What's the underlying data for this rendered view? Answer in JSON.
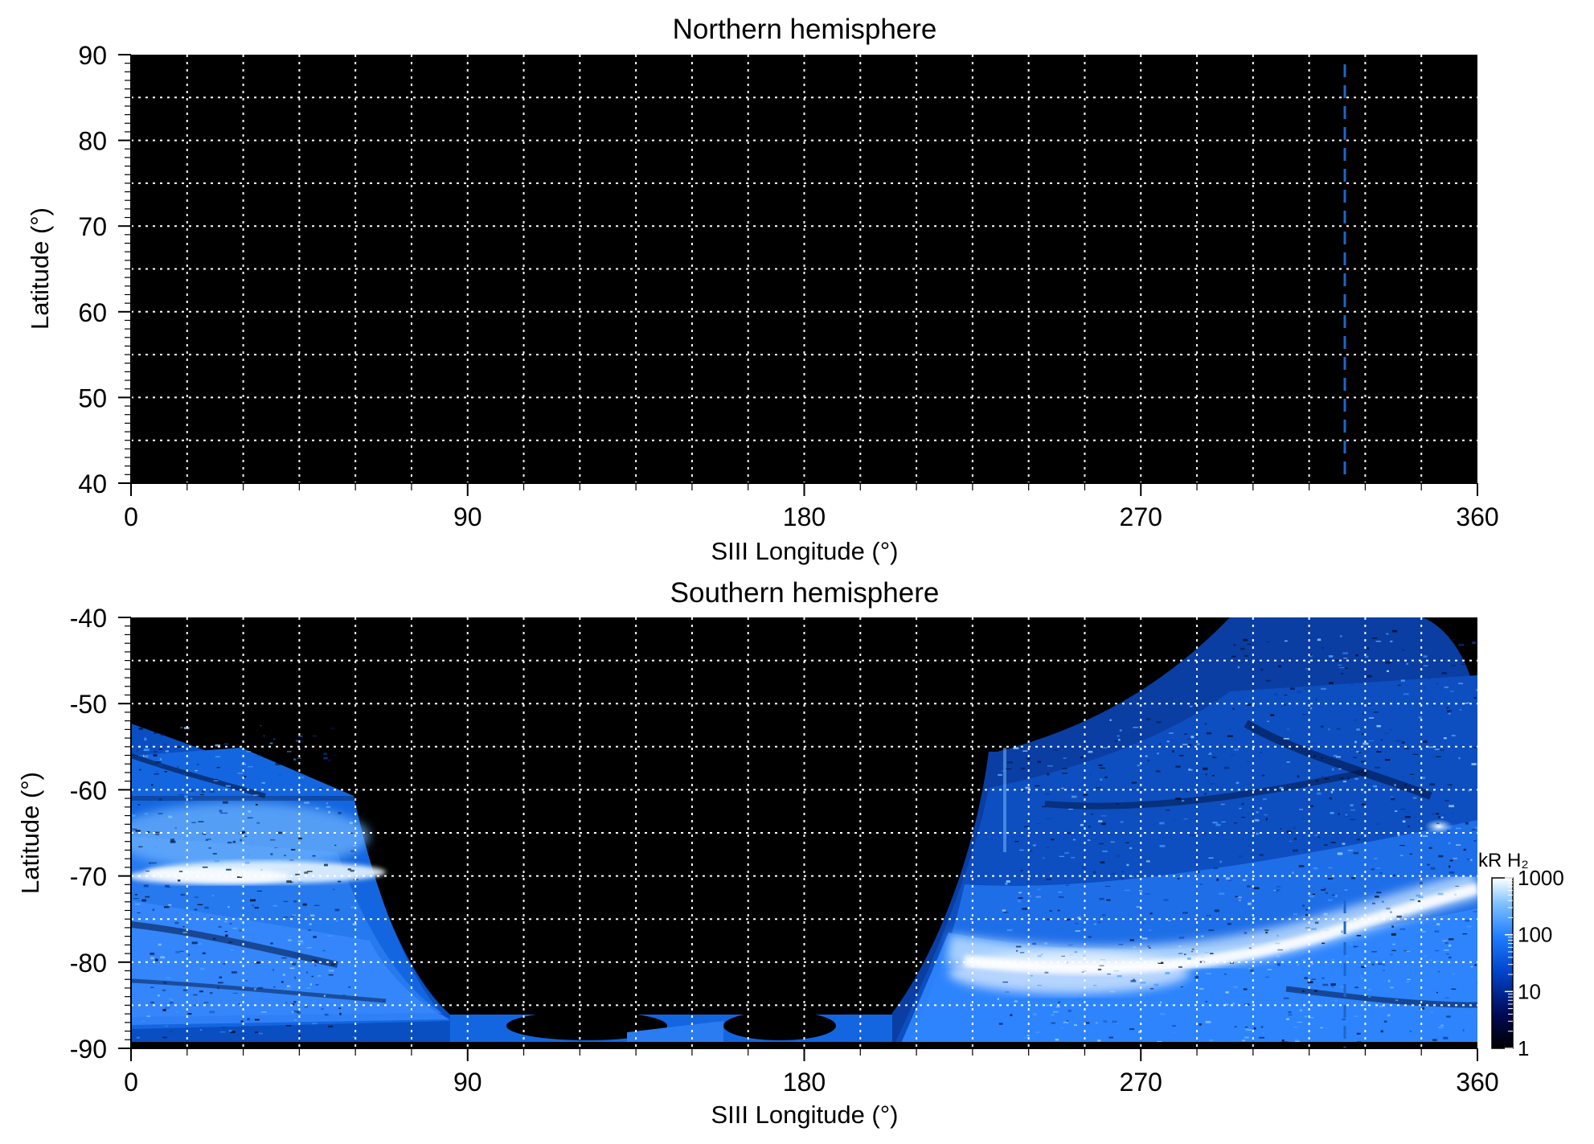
{
  "chart_data": [
    {
      "type": "heatmap",
      "title": "Northern hemisphere",
      "xlabel": "SIII Longitude (°)",
      "ylabel": "Latitude (°)",
      "xlim": [
        0,
        360
      ],
      "ylim": [
        40,
        90
      ],
      "xticks": [
        0,
        90,
        180,
        270,
        360
      ],
      "xtick_labels": [
        "0",
        "90",
        "180",
        "270",
        "360"
      ],
      "yticks": [
        40,
        50,
        60,
        70,
        80,
        90
      ],
      "ytick_labels": [
        "40",
        "50",
        "60",
        "70",
        "80",
        "90"
      ],
      "grid": true,
      "grid_x_step": 15,
      "grid_y_step": 5,
      "background": "#000000",
      "grid_color": "#ffffff",
      "emission": "none",
      "reference_line": {
        "longitude": 324,
        "color": "#1f66c9",
        "style": "dashed"
      }
    },
    {
      "type": "heatmap",
      "title": "Southern hemisphere",
      "xlabel": "SIII Longitude (°)",
      "ylabel": "Latitude (°)",
      "xlim": [
        0,
        360
      ],
      "ylim": [
        -90,
        -40
      ],
      "xticks": [
        0,
        90,
        180,
        270,
        360
      ],
      "xtick_labels": [
        "0",
        "90",
        "180",
        "270",
        "360"
      ],
      "yticks": [
        -40,
        -50,
        -60,
        -70,
        -80,
        -90
      ],
      "ytick_labels": [
        "-40",
        "-50",
        "-60",
        "-70",
        "-80",
        "-90"
      ],
      "grid": true,
      "grid_x_step": 15,
      "grid_y_step": 5,
      "background": "#000000",
      "grid_color": "#ffffff",
      "emission_regions": [
        {
          "longitude_range": [
            0,
            59
          ],
          "latitude_range": [
            -90,
            -61
          ],
          "main_oval": {
            "longitude_range": [
              0,
              60
            ],
            "latitude": -69.5,
            "intensity_kR": 1000
          }
        },
        {
          "longitude_range": [
            225,
            360
          ],
          "latitude_range": [
            -90,
            -40
          ],
          "main_oval": {
            "longitude_range": [
              225,
              360
            ],
            "latitude_from": -81,
            "latitude_to": -74,
            "intensity_kR": 1000
          },
          "bright_spot": {
            "longitude": 352,
            "latitude": -65,
            "intensity_kR": 1000
          }
        }
      ],
      "reference_line": {
        "longitude": 324,
        "color": "#1f66c9",
        "style": "dashed"
      },
      "colorbar": {
        "label": "kR H₂",
        "scale": "log",
        "range": [
          1,
          1000
        ],
        "ticks": [
          1,
          10,
          100,
          1000
        ],
        "tick_labels": [
          "1",
          "10",
          "100",
          "1000"
        ],
        "colors": [
          "#000000",
          "#000a55",
          "#0044cc",
          "#1e7bff",
          "#7ec2ff",
          "#ffffff"
        ]
      }
    }
  ]
}
